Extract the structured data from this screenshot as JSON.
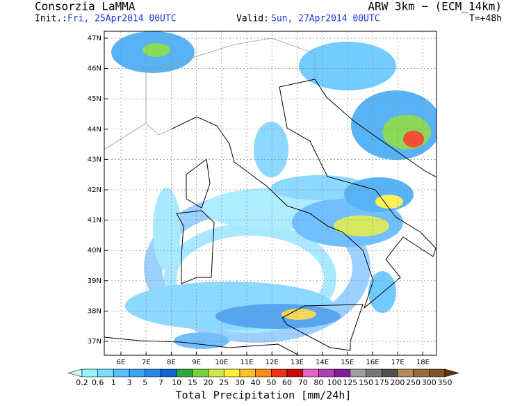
{
  "header": {
    "organization": "Consorzia LaMMA",
    "model": "ARW 3km − (ECM_14km)",
    "init_label": "Init.:",
    "init": "Fri, 25Apr2014 00UTC",
    "valid_label": "Valid:",
    "valid": "Sun, 27Apr2014 00UTC",
    "lead_time": "T=+48h"
  },
  "map": {
    "lat_labels": [
      "47N",
      "46N",
      "45N",
      "44N",
      "43N",
      "42N",
      "41N",
      "40N",
      "39N",
      "38N",
      "37N"
    ],
    "lon_labels": [
      "6E",
      "7E",
      "8E",
      "9E",
      "10E",
      "11E",
      "12E",
      "13E",
      "14E",
      "15E",
      "16E",
      "17E",
      "18E"
    ]
  },
  "colorbar": {
    "title": "Total Precipitation [mm/24h]",
    "levels": [
      0.2,
      0.6,
      1,
      3,
      5,
      7,
      10,
      15,
      20,
      25,
      30,
      40,
      50,
      60,
      70,
      80,
      100,
      125,
      150,
      175,
      200,
      250,
      300,
      350
    ],
    "colors": [
      "#c8ffff",
      "#96f5ff",
      "#78dcff",
      "#5ac3ff",
      "#3ca5f5",
      "#2887eb",
      "#1464d2",
      "#2daa3c",
      "#78d23c",
      "#d2e646",
      "#fff03c",
      "#ffc328",
      "#ff8c14",
      "#f03214",
      "#c80a0a",
      "#e664c8",
      "#b43cb4",
      "#821e96",
      "#a0a0a0",
      "#787878",
      "#505050",
      "#b48c5a",
      "#966e3c",
      "#7d5528",
      "#5a3214"
    ]
  }
}
